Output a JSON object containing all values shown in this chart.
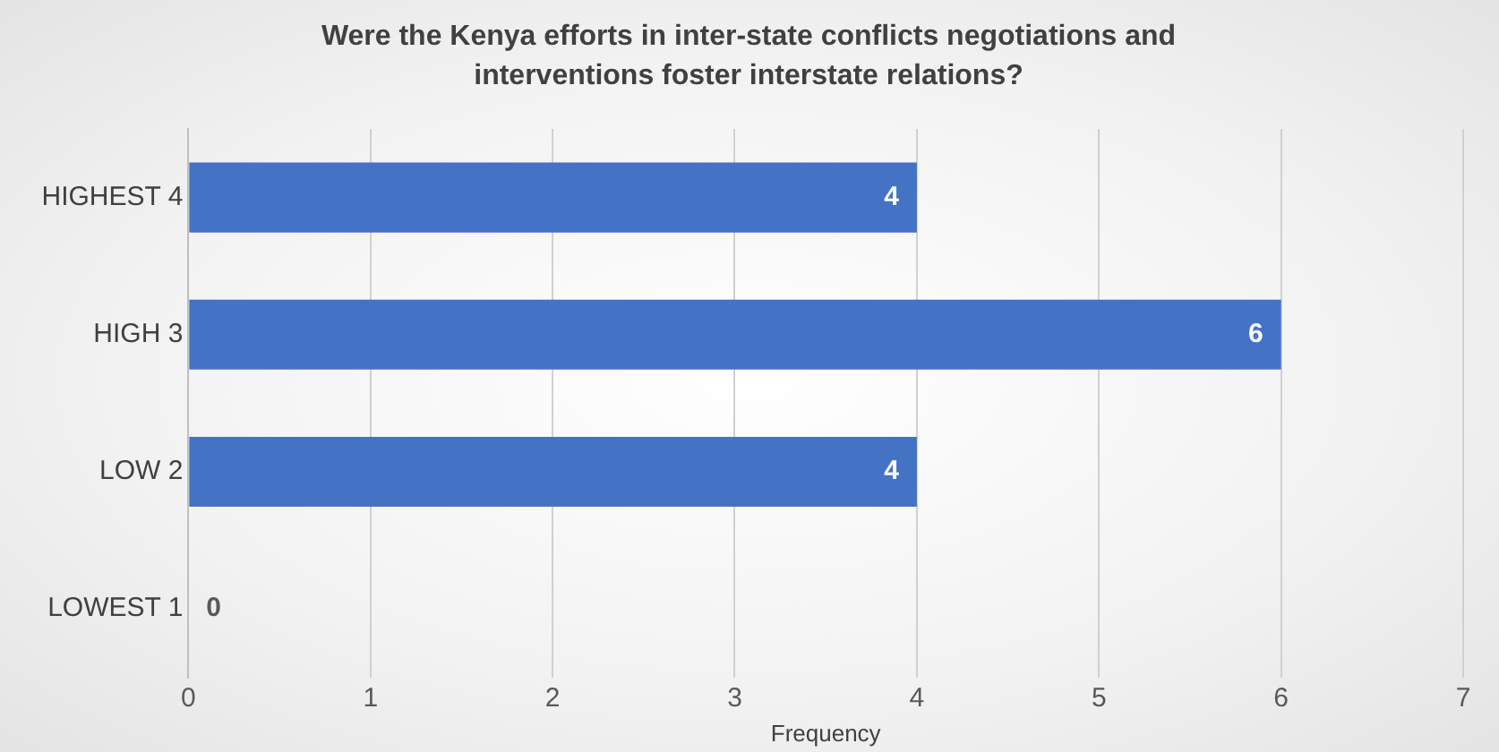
{
  "chart_data": {
    "type": "bar",
    "orientation": "horizontal",
    "title": "Were the Kenya efforts in inter-state conflicts negotiations and interventions foster interstate relations?",
    "xlabel": "Frequency",
    "categories": [
      "HIGHEST 4",
      "HIGH 3",
      "LOW 2",
      "LOWEST 1"
    ],
    "values": [
      4,
      6,
      4,
      0
    ],
    "color": "#4472c4",
    "xlim": [
      0,
      7
    ],
    "xticks": [
      0,
      1,
      2,
      3,
      4,
      5,
      6,
      7
    ],
    "grid": "x",
    "legend": false,
    "data_labels": true
  }
}
